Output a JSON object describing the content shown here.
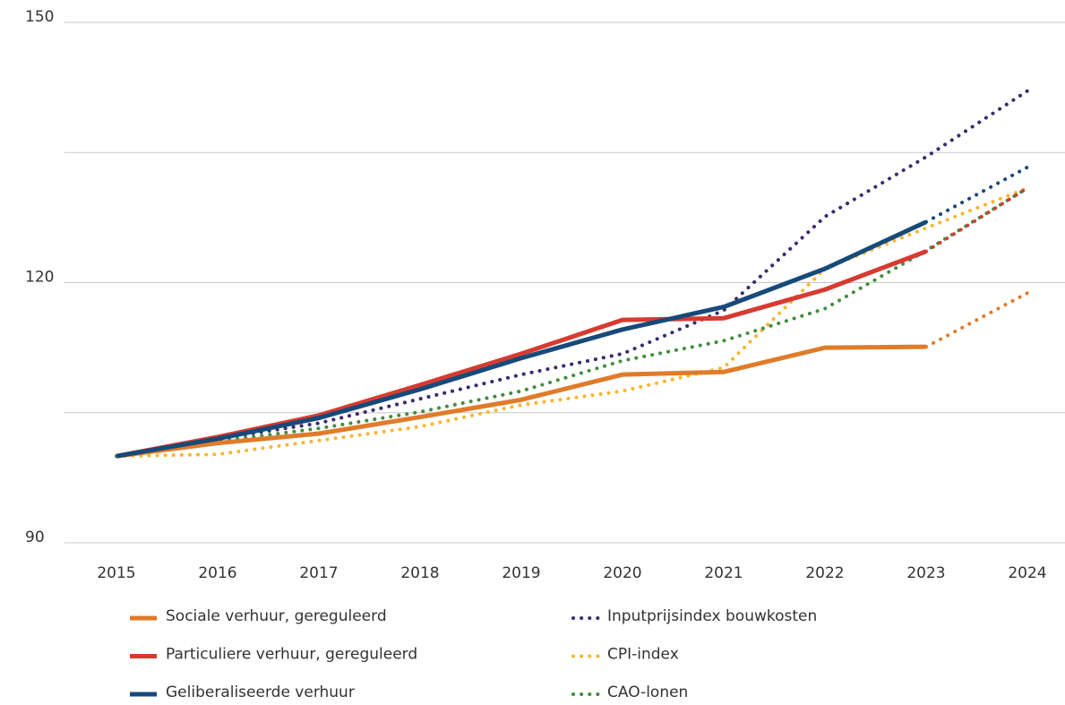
{
  "chart_data": {
    "type": "line",
    "categories": [
      "2015",
      "2016",
      "2017",
      "2018",
      "2019",
      "2020",
      "2021",
      "2022",
      "2023",
      "2024"
    ],
    "ylim": [
      90,
      150
    ],
    "yticks": [
      90,
      120,
      150
    ],
    "grid_lines": [
      90,
      105,
      120,
      135,
      150
    ],
    "series": [
      {
        "name": "Sociale verhuur, gereguleerd",
        "color": "#e07b2a",
        "style": "solid",
        "dotted_from": "2023",
        "values": [
          100,
          101.5,
          102.6,
          104.5,
          106.5,
          109.4,
          109.7,
          112.5,
          112.6,
          118.8
        ]
      },
      {
        "name": "Particuliere verhuur, gereguleerd",
        "color": "#d63b30",
        "style": "solid",
        "dotted_from": "2023",
        "values": [
          100,
          102.2,
          104.7,
          108.2,
          111.8,
          115.7,
          115.9,
          119.2,
          123.6,
          130.9
        ]
      },
      {
        "name": "Geliberaliseerde verhuur",
        "color": "#164a7a",
        "style": "solid",
        "dotted_from": "2023",
        "values": [
          100,
          102,
          104.4,
          107.7,
          111.3,
          114.6,
          117.2,
          121.6,
          127.0,
          133.3
        ]
      },
      {
        "name": "Inputprijsindex bouwkosten",
        "color": "#3d2a6b",
        "style": "dotted",
        "values": [
          100,
          102,
          103.8,
          106.6,
          109.4,
          111.8,
          116.8,
          127.6,
          134.5,
          142.1
        ]
      },
      {
        "name": "CPI-index",
        "color": "#f7b733",
        "style": "dotted",
        "values": [
          100,
          100.2,
          101.8,
          103.4,
          105.9,
          107.5,
          110.2,
          121.6,
          126.3,
          130.9
        ]
      },
      {
        "name": "CAO-lonen",
        "color": "#3f8f3f",
        "style": "dotted",
        "values": [
          100,
          101.7,
          103.2,
          105.1,
          107.5,
          111,
          113.3,
          117,
          123.7,
          130.9
        ]
      }
    ]
  }
}
